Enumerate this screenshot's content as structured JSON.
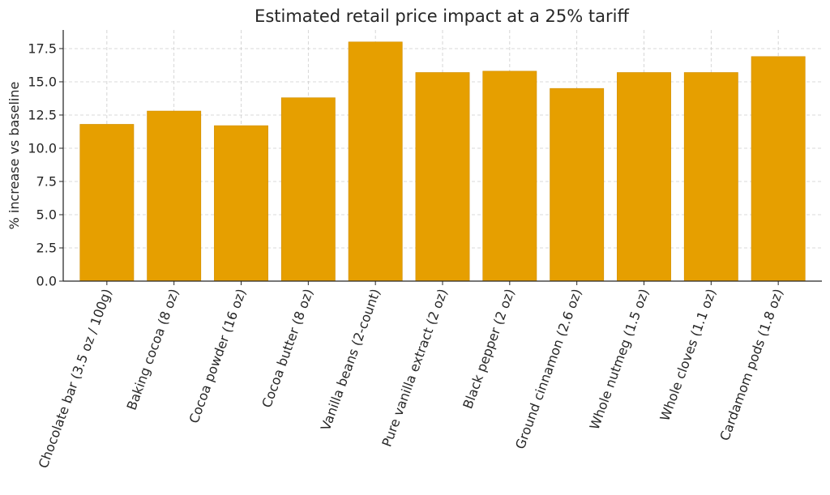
{
  "chart_data": {
    "type": "bar",
    "title": "Estimated retail price impact at a 25% tariff",
    "xlabel": "",
    "ylabel": "% increase vs baseline",
    "categories": [
      "Chocolate bar (3.5 oz / 100g)",
      "Baking cocoa (8 oz)",
      "Cocoa powder (16 oz)",
      "Cocoa butter (8 oz)",
      "Vanilla beans (2-count)",
      "Pure vanilla extract (2 oz)",
      "Black pepper (2 oz)",
      "Ground cinnamon (2.6 oz)",
      "Whole nutmeg (1.5 oz)",
      "Whole cloves (1.1 oz)",
      "Cardamom pods (1.8 oz)"
    ],
    "values": [
      11.8,
      12.8,
      11.7,
      13.8,
      18.0,
      15.7,
      15.8,
      14.5,
      15.7,
      15.7,
      16.9
    ],
    "ylim": [
      0,
      18.9
    ],
    "yticks": [
      0.0,
      2.5,
      5.0,
      7.5,
      10.0,
      12.5,
      15.0,
      17.5
    ],
    "ytick_labels": [
      "0.0",
      "2.5",
      "5.0",
      "7.5",
      "10.0",
      "12.5",
      "15.0",
      "17.5"
    ],
    "grid": true,
    "bar_color": "#E69F00",
    "bar_edge_color": "#D08E00"
  }
}
